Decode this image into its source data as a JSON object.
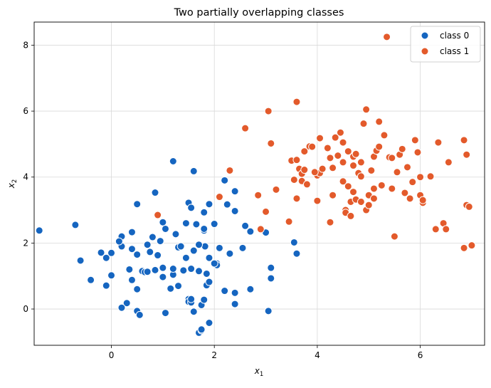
{
  "chart_data": {
    "type": "scatter",
    "title": "Two partially overlapping classes",
    "xlabel": "x",
    "xlabel_sub": "1",
    "ylabel": "x",
    "ylabel_sub": "2",
    "xlim": [
      -1.5,
      7.25
    ],
    "ylim": [
      -1.1,
      8.7
    ],
    "x_ticks": [
      0,
      2,
      4,
      6
    ],
    "y_ticks": [
      0,
      2,
      4,
      6,
      8
    ],
    "grid": true,
    "legend_position": "top-right",
    "series": [
      {
        "name": "class 0",
        "color": "#1565c0",
        "points": [
          [
            -1.4,
            2.38
          ],
          [
            -0.6,
            1.47
          ],
          [
            -0.4,
            0.88
          ],
          [
            -0.7,
            2.55
          ],
          [
            -0.1,
            1.55
          ],
          [
            -0.2,
            1.71
          ],
          [
            -0.1,
            0.71
          ],
          [
            0.0,
            1.02
          ],
          [
            0.0,
            1.7
          ],
          [
            0.2,
            2.2
          ],
          [
            0.2,
            1.9
          ],
          [
            0.4,
            1.82
          ],
          [
            0.4,
            2.33
          ],
          [
            0.3,
            0.18
          ],
          [
            0.2,
            0.04
          ],
          [
            0.5,
            -0.06
          ],
          [
            0.55,
            -0.18
          ],
          [
            0.5,
            0.6
          ],
          [
            0.4,
            0.88
          ],
          [
            0.5,
            3.18
          ],
          [
            0.5,
            1.65
          ],
          [
            0.6,
            1.15
          ],
          [
            0.65,
            1.12
          ],
          [
            0.7,
            1.95
          ],
          [
            0.75,
            1.73
          ],
          [
            0.8,
            2.18
          ],
          [
            0.85,
            3.53
          ],
          [
            0.85,
            1.18
          ],
          [
            0.9,
            1.63
          ],
          [
            0.95,
            2.06
          ],
          [
            1.0,
            1.25
          ],
          [
            1.0,
            0.97
          ],
          [
            1.0,
            2.63
          ],
          [
            1.05,
            2.43
          ],
          [
            1.05,
            -0.12
          ],
          [
            1.15,
            0.62
          ],
          [
            1.2,
            4.48
          ],
          [
            1.2,
            1.04
          ],
          [
            1.25,
            2.27
          ],
          [
            1.3,
            1.87
          ],
          [
            1.35,
            1.9
          ],
          [
            1.4,
            1.17
          ],
          [
            1.45,
            2.6
          ],
          [
            1.5,
            3.22
          ],
          [
            1.5,
            0.3
          ],
          [
            1.5,
            0.22
          ],
          [
            1.55,
            3.07
          ],
          [
            1.55,
            1.22
          ],
          [
            1.55,
            0.2
          ],
          [
            1.6,
            4.18
          ],
          [
            1.6,
            -0.08
          ],
          [
            1.6,
            1.77
          ],
          [
            1.65,
            2.57
          ],
          [
            1.7,
            1.15
          ],
          [
            1.7,
            -0.72
          ],
          [
            1.75,
            -0.65
          ],
          [
            1.75,
            0.12
          ],
          [
            1.8,
            0.28
          ],
          [
            1.8,
            2.93
          ],
          [
            1.8,
            2.38
          ],
          [
            1.8,
            2.43
          ],
          [
            1.82,
            1.9
          ],
          [
            1.85,
            1.07
          ],
          [
            1.85,
            0.72
          ],
          [
            1.9,
            0.82
          ],
          [
            1.9,
            -0.42
          ],
          [
            1.9,
            1.55
          ],
          [
            1.9,
            3.18
          ],
          [
            2.0,
            2.58
          ],
          [
            2.05,
            1.38
          ],
          [
            2.05,
            1.33
          ],
          [
            2.1,
            1.85
          ],
          [
            2.2,
            3.9
          ],
          [
            2.2,
            0.55
          ],
          [
            2.25,
            3.17
          ],
          [
            2.3,
            1.68
          ],
          [
            2.4,
            3.57
          ],
          [
            2.4,
            0.49
          ],
          [
            2.4,
            2.97
          ],
          [
            2.4,
            0.15
          ],
          [
            2.55,
            1.85
          ],
          [
            2.6,
            2.52
          ],
          [
            2.7,
            2.35
          ],
          [
            2.7,
            0.6
          ],
          [
            3.0,
            2.32
          ],
          [
            3.05,
            -0.06
          ],
          [
            3.1,
            1.25
          ],
          [
            3.1,
            0.93
          ],
          [
            3.55,
            2.02
          ],
          [
            3.6,
            1.68
          ],
          [
            1.75,
            -0.62
          ],
          [
            0.35,
            1.2
          ],
          [
            1.3,
            0.7
          ],
          [
            0.15,
            2.05
          ],
          [
            1.45,
            1.55
          ],
          [
            2.0,
            1.38
          ],
          [
            0.7,
            1.13
          ],
          [
            1.2,
            1.22
          ],
          [
            1.55,
            0.3
          ],
          [
            1.7,
            1.95
          ]
        ]
      },
      {
        "name": "class 1",
        "color": "#e35a2b",
        "points": [
          [
            0.9,
            2.85
          ],
          [
            2.1,
            3.4
          ],
          [
            2.3,
            4.2
          ],
          [
            2.6,
            5.48
          ],
          [
            2.85,
            3.45
          ],
          [
            2.9,
            2.42
          ],
          [
            3.0,
            2.95
          ],
          [
            3.05,
            6.0
          ],
          [
            3.1,
            5.02
          ],
          [
            3.2,
            3.62
          ],
          [
            3.45,
            2.65
          ],
          [
            3.5,
            4.5
          ],
          [
            3.55,
            3.92
          ],
          [
            3.6,
            4.52
          ],
          [
            3.6,
            3.35
          ],
          [
            3.6,
            6.28
          ],
          [
            3.65,
            4.25
          ],
          [
            3.7,
            3.88
          ],
          [
            3.7,
            4.1
          ],
          [
            3.75,
            4.22
          ],
          [
            3.75,
            4.78
          ],
          [
            3.8,
            3.78
          ],
          [
            3.85,
            4.93
          ],
          [
            3.9,
            4.92
          ],
          [
            4.0,
            4.05
          ],
          [
            4.0,
            3.28
          ],
          [
            4.05,
            5.18
          ],
          [
            4.05,
            4.12
          ],
          [
            4.1,
            4.25
          ],
          [
            4.2,
            4.88
          ],
          [
            4.25,
            2.63
          ],
          [
            4.3,
            3.45
          ],
          [
            4.35,
            5.2
          ],
          [
            4.4,
            4.65
          ],
          [
            4.45,
            5.35
          ],
          [
            4.5,
            4.45
          ],
          [
            4.5,
            3.87
          ],
          [
            4.55,
            3.0
          ],
          [
            4.55,
            2.92
          ],
          [
            4.6,
            4.78
          ],
          [
            4.6,
            3.72
          ],
          [
            4.65,
            3.25
          ],
          [
            4.65,
            2.82
          ],
          [
            4.7,
            3.55
          ],
          [
            4.7,
            4.62
          ],
          [
            4.75,
            3.32
          ],
          [
            4.8,
            4.12
          ],
          [
            4.85,
            4.02
          ],
          [
            4.85,
            3.25
          ],
          [
            4.85,
            4.45
          ],
          [
            4.9,
            5.62
          ],
          [
            4.95,
            6.05
          ],
          [
            4.95,
            3.0
          ],
          [
            5.0,
            3.45
          ],
          [
            5.0,
            3.15
          ],
          [
            5.05,
            4.2
          ],
          [
            5.1,
            3.35
          ],
          [
            5.1,
            4.62
          ],
          [
            5.15,
            4.8
          ],
          [
            5.2,
            4.92
          ],
          [
            5.2,
            5.68
          ],
          [
            5.25,
            3.75
          ],
          [
            5.3,
            5.27
          ],
          [
            5.35,
            8.25
          ],
          [
            5.4,
            4.6
          ],
          [
            5.45,
            3.65
          ],
          [
            5.5,
            2.2
          ],
          [
            5.55,
            4.15
          ],
          [
            5.6,
            4.68
          ],
          [
            5.65,
            4.85
          ],
          [
            5.7,
            3.52
          ],
          [
            5.75,
            4.3
          ],
          [
            5.8,
            3.35
          ],
          [
            5.85,
            3.85
          ],
          [
            5.9,
            5.12
          ],
          [
            5.95,
            4.75
          ],
          [
            6.0,
            3.45
          ],
          [
            6.0,
            4.0
          ],
          [
            6.05,
            3.22
          ],
          [
            6.05,
            3.3
          ],
          [
            6.2,
            4.02
          ],
          [
            6.3,
            2.42
          ],
          [
            6.35,
            5.05
          ],
          [
            6.45,
            2.6
          ],
          [
            6.5,
            2.42
          ],
          [
            6.55,
            4.45
          ],
          [
            6.85,
            1.85
          ],
          [
            6.85,
            5.12
          ],
          [
            6.9,
            4.68
          ],
          [
            6.9,
            3.15
          ],
          [
            6.95,
            3.1
          ],
          [
            7.0,
            1.93
          ],
          [
            4.3,
            4.28
          ],
          [
            4.75,
            4.7
          ],
          [
            5.1,
            3.65
          ],
          [
            4.25,
            4.58
          ],
          [
            4.7,
            4.35
          ],
          [
            5.45,
            4.58
          ],
          [
            3.95,
            4.15
          ],
          [
            4.5,
            5.05
          ]
        ]
      }
    ]
  }
}
